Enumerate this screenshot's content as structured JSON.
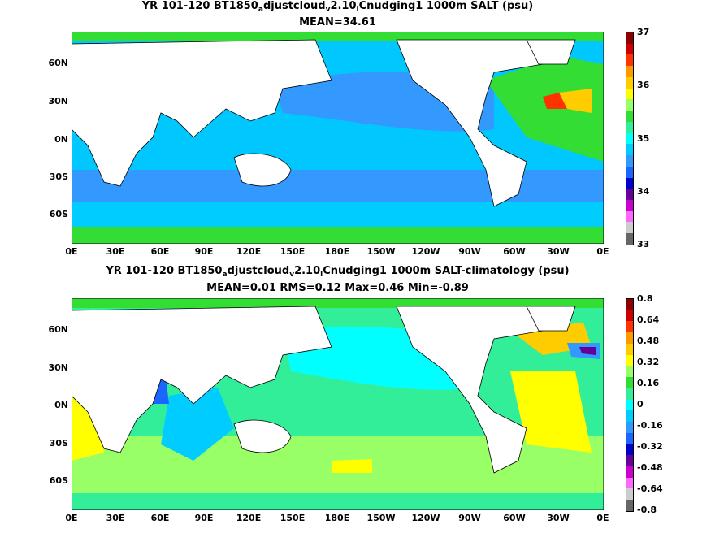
{
  "top_panel": {
    "title_parts": {
      "a": "YR 101-120 BT1850",
      "sub1": "a",
      "b": "djustcloud",
      "sub2": "v",
      "c": "2.10",
      "sub3": "l",
      "d": "Cnudging1 1000m SALT (psu)"
    },
    "subtitle": "MEAN=34.61",
    "lat_labels": [
      "60N",
      "30N",
      "0N",
      "30S",
      "60S"
    ],
    "lon_labels": [
      "0E",
      "30E",
      "60E",
      "90E",
      "120E",
      "150E",
      "180E",
      "150W",
      "120W",
      "90W",
      "60W",
      "30W",
      "0E"
    ],
    "colorbar_labels": [
      "37",
      "36",
      "35",
      "34",
      "33"
    ],
    "colorbar_colors": [
      "#8b0000",
      "#cc0000",
      "#ff3300",
      "#ff9900",
      "#ffcc00",
      "#ffff00",
      "#99ff66",
      "#33dd33",
      "#33ee99",
      "#00ffff",
      "#00ccff",
      "#3399ff",
      "#1a66ff",
      "#0000cc",
      "#660099",
      "#cc00cc",
      "#ff66ff",
      "#cccccc",
      "#666666"
    ]
  },
  "bottom_panel": {
    "title_parts": {
      "a": "YR 101-120 BT1850",
      "sub1": "a",
      "b": "djustcloud",
      "sub2": "v",
      "c": "2.10",
      "sub3": "l",
      "d": "Cnudging1 1000m SALT-climatology (psu)"
    },
    "subtitle": "MEAN=0.01   RMS=0.12   Max=0.46   Min=-0.89",
    "lat_labels": [
      "60N",
      "30N",
      "0N",
      "30S",
      "60S"
    ],
    "lon_labels": [
      "0E",
      "30E",
      "60E",
      "90E",
      "120E",
      "150E",
      "180E",
      "150W",
      "120W",
      "90W",
      "60W",
      "30W",
      "0E"
    ],
    "colorbar_labels": [
      "0.8",
      "0.64",
      "0.48",
      "0.32",
      "0.16",
      "0",
      "-0.16",
      "-0.32",
      "-0.48",
      "-0.64",
      "-0.8"
    ],
    "colorbar_colors": [
      "#8b0000",
      "#cc0000",
      "#ff3300",
      "#ff9900",
      "#ffcc00",
      "#ffff00",
      "#99ff66",
      "#33dd33",
      "#33ee99",
      "#00ffff",
      "#00ccff",
      "#3399ff",
      "#1a66ff",
      "#0000cc",
      "#660099",
      "#cc00cc",
      "#ff66ff",
      "#cccccc",
      "#666666"
    ]
  },
  "colors": {
    "ocean_top": "#00c8ff",
    "ocean_bottom": "#33ee99",
    "land": "#ffffff"
  }
}
